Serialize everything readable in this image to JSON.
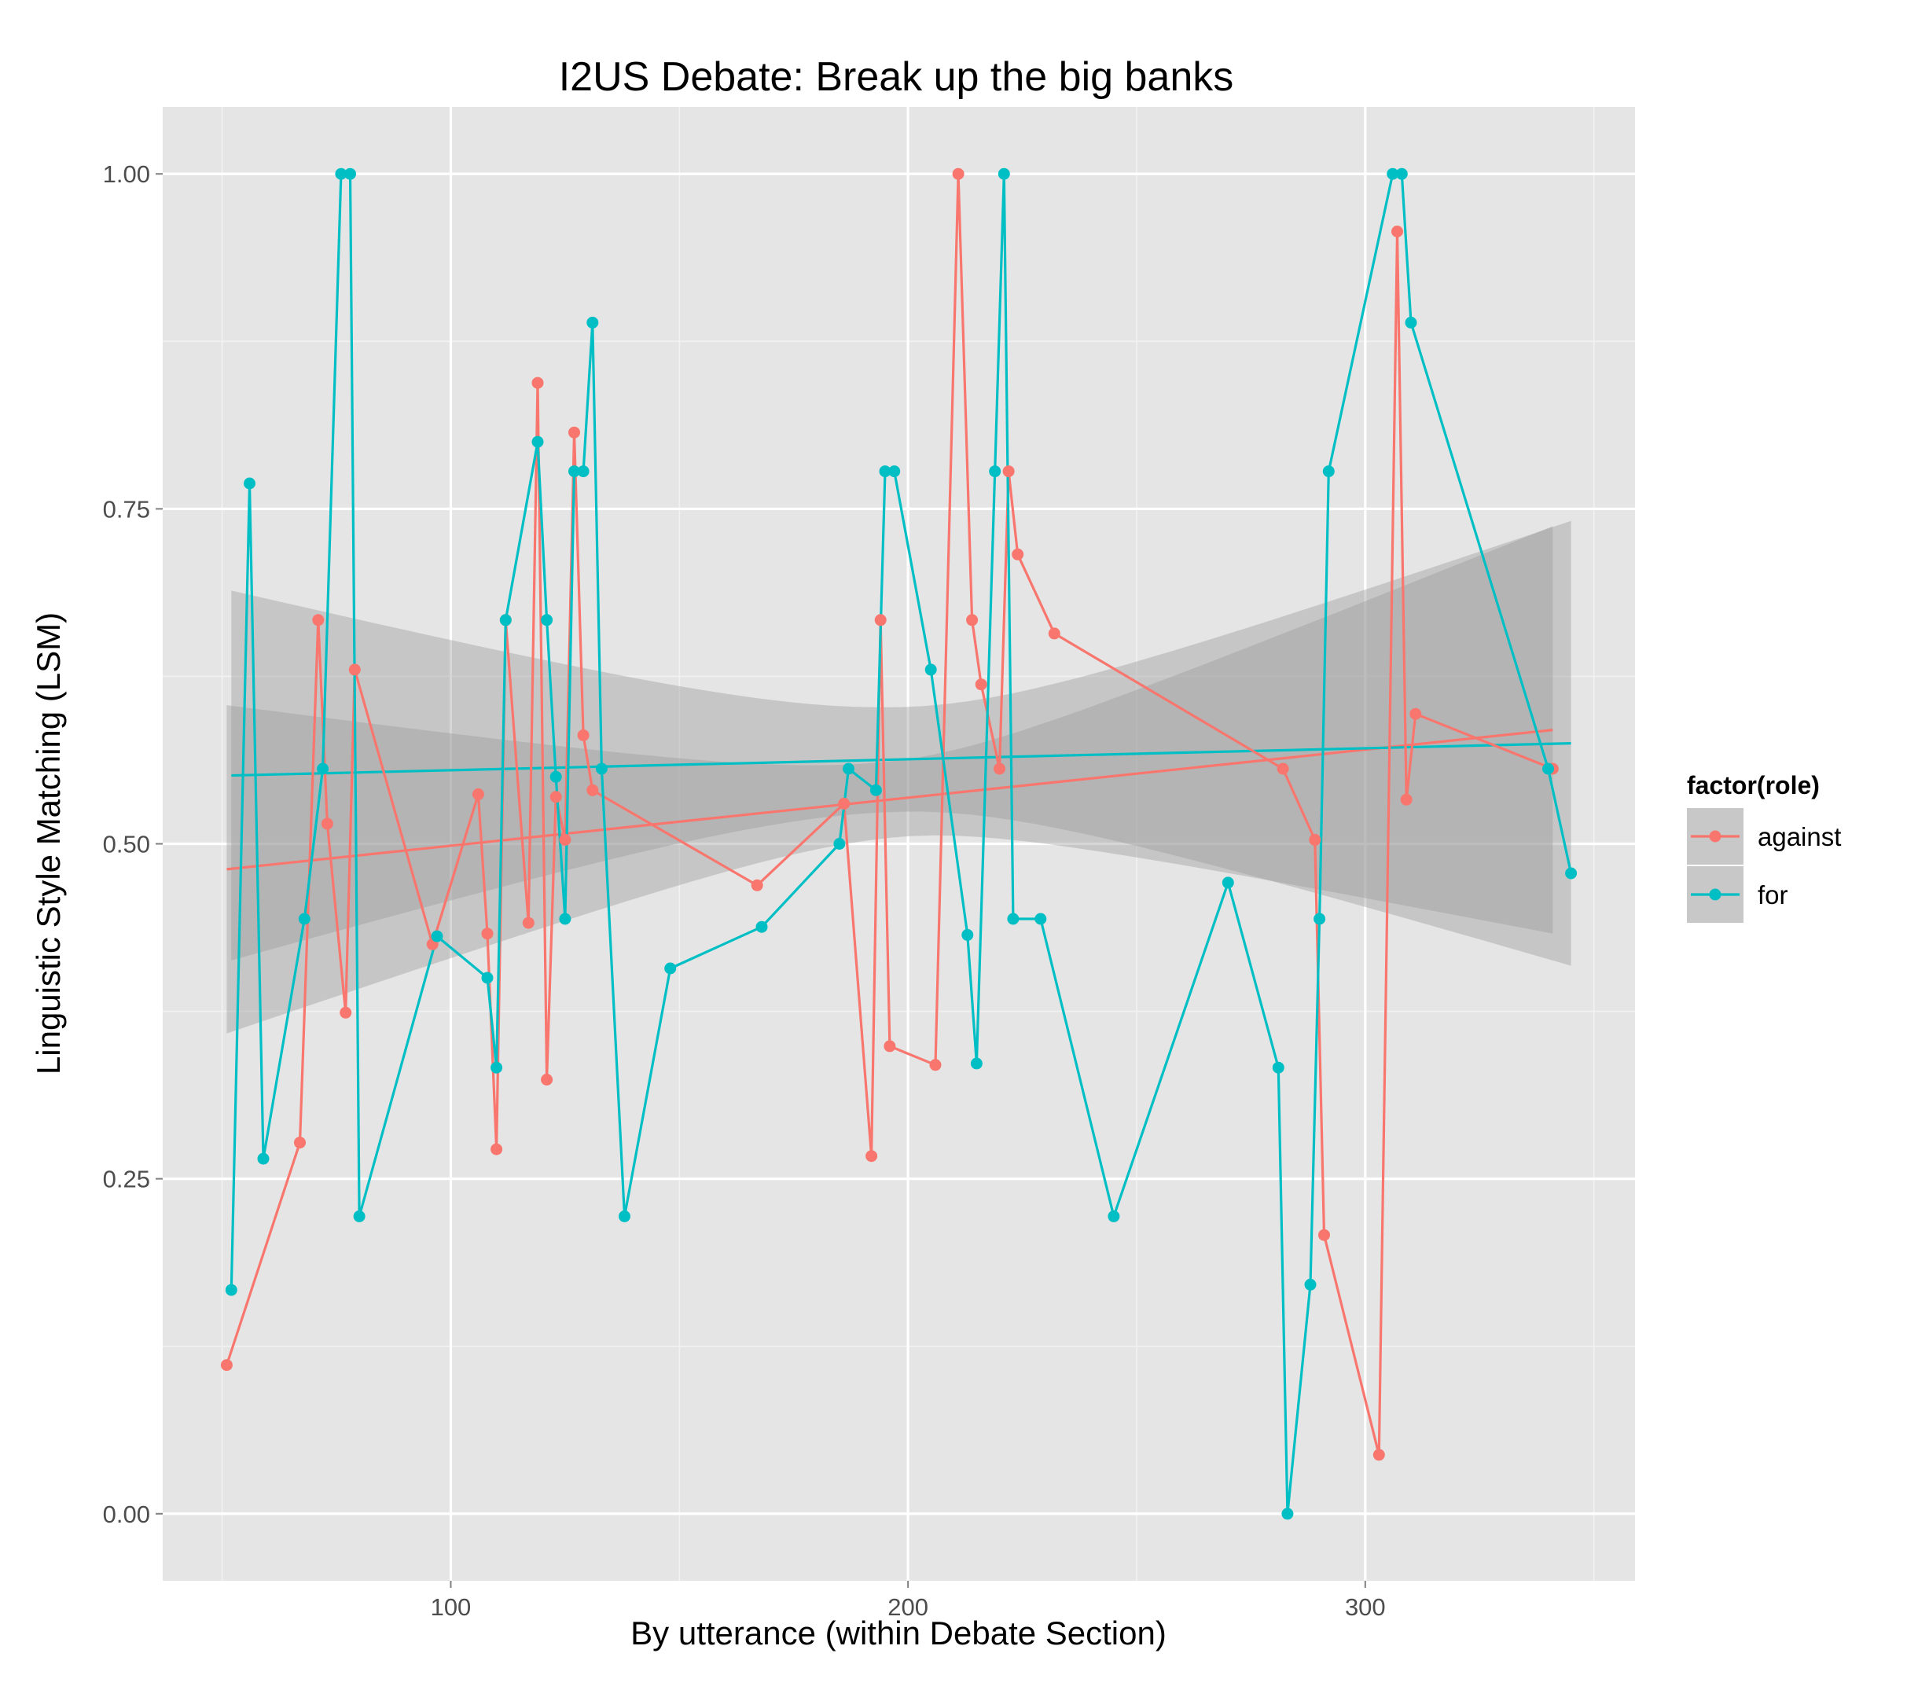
{
  "chart_data": {
    "type": "line",
    "title": "I2US Debate: Break up the big banks",
    "xlabel": "By utterance (within Debate Section)",
    "ylabel": "Linguistic Style Matching (LSM)",
    "xlim": [
      37,
      359
    ],
    "ylim": [
      -0.05,
      1.05
    ],
    "x_ticks": [
      100,
      200,
      300
    ],
    "x_tick_labels": [
      "100",
      "200",
      "300"
    ],
    "y_ticks": [
      0,
      0.25,
      0.5,
      0.75,
      1.0
    ],
    "y_tick_labels": [
      "0.00",
      "0.25",
      "0.50",
      "0.75",
      "1.00"
    ],
    "grid": true,
    "legend": {
      "title": "factor(role)",
      "position": "right",
      "entries": [
        "against",
        "for"
      ]
    },
    "series": [
      {
        "name": "against",
        "color": "#F8766D",
        "x": [
          51,
          67,
          71,
          73,
          77,
          79,
          96,
          106,
          108,
          110,
          112,
          117,
          119,
          121,
          123,
          125,
          127,
          129,
          131,
          167,
          186,
          192,
          194,
          196,
          206,
          211,
          214,
          216,
          220,
          222,
          224,
          232,
          282,
          289,
          291,
          303,
          307,
          309,
          311,
          341
        ],
        "y": [
          0.111,
          0.277,
          0.667,
          0.515,
          0.374,
          0.63,
          0.425,
          0.537,
          0.433,
          0.272,
          0.667,
          0.441,
          0.844,
          0.324,
          0.535,
          0.503,
          0.807,
          0.581,
          0.54,
          0.469,
          0.53,
          0.267,
          0.667,
          0.349,
          0.335,
          1.0,
          0.667,
          0.619,
          0.556,
          0.778,
          0.716,
          0.657,
          0.556,
          0.503,
          0.208,
          0.044,
          0.957,
          0.533,
          0.597,
          0.556
        ]
      },
      {
        "name": "for",
        "color": "#00BFC4",
        "x": [
          52,
          56,
          59,
          68,
          72,
          76,
          78,
          80,
          97,
          108,
          110,
          112,
          119,
          121,
          123,
          125,
          127,
          129,
          131,
          133,
          138,
          148,
          168,
          185,
          187,
          193,
          195,
          197,
          205,
          213,
          215,
          219,
          221,
          223,
          229,
          245,
          270,
          281,
          283,
          288,
          290,
          292,
          306,
          308,
          310,
          340,
          345
        ],
        "y": [
          0.167,
          0.769,
          0.265,
          0.444,
          0.556,
          1.0,
          1.0,
          0.222,
          0.431,
          0.4,
          0.333,
          0.667,
          0.8,
          0.667,
          0.55,
          0.444,
          0.778,
          0.778,
          0.889,
          0.556,
          0.222,
          0.407,
          0.438,
          0.5,
          0.556,
          0.54,
          0.778,
          0.778,
          0.63,
          0.432,
          0.336,
          0.778,
          1.0,
          0.444,
          0.444,
          0.222,
          0.471,
          0.333,
          0.0,
          0.171,
          0.444,
          0.778,
          1.0,
          1.0,
          0.889,
          0.556,
          0.478
        ]
      }
    ],
    "fits": [
      {
        "series": "against",
        "color": "#F8766D",
        "x_range": [
          51,
          341
        ],
        "y_at_start": 0.481,
        "y_at_end": 0.585,
        "ci_start": [
          0.359,
          0.604
        ],
        "ci_mid": [
          0.505,
          0.562
        ],
        "ci_end": [
          0.431,
          0.735
        ]
      },
      {
        "series": "for",
        "color": "#00BFC4",
        "x_range": [
          52,
          345
        ],
        "y_at_start": 0.551,
        "y_at_end": 0.575,
        "ci_start": [
          0.413,
          0.689
        ],
        "ci_mid": [
          0.522,
          0.6
        ],
        "ci_end": [
          0.409,
          0.741
        ]
      }
    ]
  }
}
